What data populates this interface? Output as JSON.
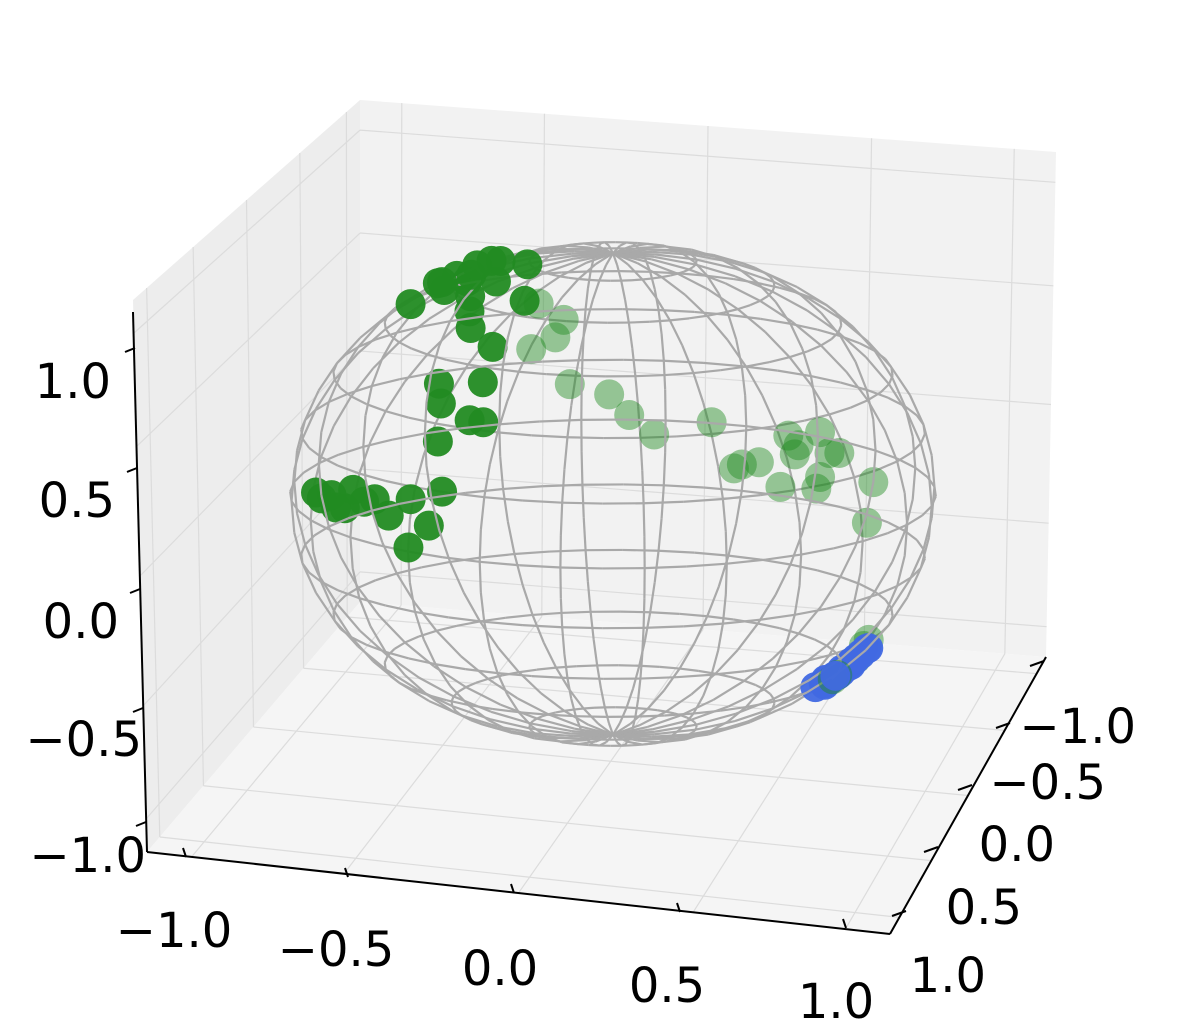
{
  "chart_data": {
    "type": "scatter",
    "projection": "3d",
    "title": "",
    "xlabel": "",
    "ylabel": "",
    "zlabel": "",
    "xlim": [
      -1.2,
      1.2
    ],
    "ylim": [
      -1.2,
      1.2
    ],
    "zlim": [
      -1.2,
      1.2
    ],
    "x_ticks": [
      "−1.0",
      "−0.5",
      "0.0",
      "0.5",
      "1.0"
    ],
    "y_ticks": [
      "−1.0",
      "−0.5",
      "0.0",
      "0.5",
      "1.0"
    ],
    "z_ticks": [
      "−1.0",
      "−0.5",
      "0.0",
      "0.5",
      "1.0"
    ],
    "grid": true,
    "wireframe": "unit sphere",
    "colors": {
      "near_points": "#228b22",
      "far_points": "#228b22",
      "cluster": "#4169e1",
      "wireframe": "#a9a9a9",
      "pane": "#f2f2f2",
      "grid": "#dcdcdc"
    },
    "series": [
      {
        "color": "#228b22",
        "opacity": 0.95,
        "points": [
          [
            0.02,
            -0.83,
            0.56
          ],
          [
            -0.05,
            -0.62,
            0.78
          ],
          [
            -0.12,
            -0.71,
            0.69
          ],
          [
            -0.18,
            -0.51,
            0.84
          ],
          [
            -0.24,
            -0.43,
            0.87
          ],
          [
            -0.25,
            -0.58,
            0.77
          ],
          [
            -0.28,
            -0.45,
            0.85
          ],
          [
            -0.31,
            -0.66,
            0.69
          ],
          [
            -0.37,
            -0.52,
            0.77
          ],
          [
            -0.4,
            -0.31,
            0.86
          ],
          [
            -0.41,
            -0.45,
            0.79
          ],
          [
            -0.43,
            -0.14,
            0.89
          ],
          [
            -0.44,
            -0.61,
            0.66
          ],
          [
            -0.48,
            0.02,
            0.88
          ],
          [
            -0.52,
            0.12,
            0.85
          ],
          [
            -0.53,
            0.35,
            0.77
          ],
          [
            -0.55,
            0.21,
            0.81
          ],
          [
            -0.6,
            0.45,
            0.66
          ],
          [
            -0.64,
            0.56,
            0.53
          ],
          [
            -0.67,
            0.52,
            0.53
          ],
          [
            -0.7,
            0.33,
            0.63
          ],
          [
            -0.72,
            0.4,
            0.57
          ],
          [
            -0.76,
            0.48,
            0.44
          ],
          [
            -0.78,
            0.57,
            0.26
          ],
          [
            -0.82,
            0.56,
            0.12
          ],
          [
            -0.85,
            0.48,
            0.21
          ],
          [
            -0.88,
            0.54,
            0.03
          ],
          [
            -0.9,
            0.42,
            0.13
          ],
          [
            -0.92,
            0.35,
            0.18
          ],
          [
            -0.94,
            0.31,
            0.16
          ],
          [
            -0.95,
            0.24,
            0.19
          ],
          [
            -0.97,
            0.22,
            0.11
          ],
          [
            -0.98,
            0.17,
            0.1
          ],
          [
            -0.98,
            0.13,
            0.14
          ],
          [
            -0.99,
            0.07,
            0.11
          ],
          [
            -0.99,
            0.02,
            0.12
          ]
        ]
      },
      {
        "color": "#228b22",
        "opacity": 0.45,
        "points": [
          [
            -0.34,
            0.25,
            0.9
          ],
          [
            -0.31,
            0.39,
            0.87
          ],
          [
            -0.36,
            0.45,
            0.82
          ],
          [
            -0.44,
            0.45,
            0.78
          ],
          [
            -0.38,
            0.63,
            0.68
          ],
          [
            -0.28,
            0.71,
            0.65
          ],
          [
            -0.24,
            0.78,
            0.58
          ],
          [
            -0.18,
            0.84,
            0.51
          ],
          [
            0.01,
            0.84,
            0.54
          ],
          [
            0.05,
            0.93,
            0.37
          ],
          [
            0.08,
            0.92,
            0.38
          ],
          [
            0.14,
            0.91,
            0.38
          ],
          [
            0.2,
            0.94,
            0.28
          ],
          [
            0.26,
            0.85,
            0.46
          ],
          [
            0.27,
            0.88,
            0.39
          ],
          [
            0.29,
            0.86,
            0.42
          ],
          [
            0.33,
            0.91,
            0.25
          ],
          [
            0.35,
            0.89,
            0.29
          ],
          [
            0.38,
            0.81,
            0.45
          ],
          [
            0.4,
            0.84,
            0.37
          ],
          [
            0.44,
            0.82,
            0.36
          ],
          [
            0.52,
            0.85,
            0.07
          ],
          [
            0.56,
            0.8,
            0.22
          ],
          [
            0.6,
            0.61,
            -0.52
          ],
          [
            0.62,
            0.6,
            -0.5
          ],
          [
            0.62,
            0.49,
            -0.61
          ],
          [
            0.58,
            0.43,
            -0.69
          ],
          [
            0.58,
            0.39,
            -0.72
          ]
        ]
      },
      {
        "color": "#4169e1",
        "opacity": 0.95,
        "points": [
          [
            0.57,
            0.49,
            -0.66
          ],
          [
            0.55,
            0.55,
            -0.63
          ],
          [
            0.59,
            0.53,
            -0.61
          ],
          [
            0.51,
            0.52,
            -0.68
          ],
          [
            0.61,
            0.47,
            -0.64
          ],
          [
            0.55,
            0.45,
            -0.7
          ],
          [
            0.49,
            0.55,
            -0.68
          ],
          [
            0.62,
            0.53,
            -0.58
          ],
          [
            0.66,
            0.49,
            -0.57
          ],
          [
            0.52,
            0.48,
            -0.71
          ],
          [
            0.56,
            0.49,
            -0.67
          ],
          [
            0.6,
            0.5,
            -0.62
          ],
          [
            0.5,
            0.54,
            -0.67
          ],
          [
            0.65,
            0.5,
            -0.57
          ],
          [
            0.53,
            0.46,
            -0.71
          ],
          [
            0.58,
            0.52,
            -0.63
          ],
          [
            0.47,
            0.53,
            -0.7
          ],
          [
            0.57,
            0.44,
            -0.69
          ],
          [
            0.63,
            0.46,
            -0.62
          ],
          [
            0.54,
            0.51,
            -0.67
          ]
        ]
      }
    ]
  }
}
